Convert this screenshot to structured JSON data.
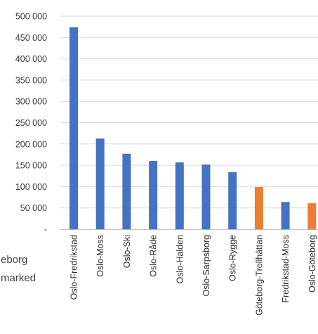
{
  "chart_data": {
    "type": "bar",
    "title": "",
    "xlabel": "",
    "ylabel": "",
    "ylim": [
      0,
      500000
    ],
    "y_ticks": [
      {
        "value": 0,
        "label": "-"
      },
      {
        "value": 50000,
        "label": "50 000"
      },
      {
        "value": 100000,
        "label": "100 000"
      },
      {
        "value": 150000,
        "label": "150 000"
      },
      {
        "value": 200000,
        "label": "200 000"
      },
      {
        "value": 250000,
        "label": "250 000"
      },
      {
        "value": 300000,
        "label": "300 000"
      },
      {
        "value": 350000,
        "label": "350 000"
      },
      {
        "value": 400000,
        "label": "400 000"
      },
      {
        "value": 450000,
        "label": "450 000"
      },
      {
        "value": 500000,
        "label": "500 000"
      }
    ],
    "grid": true,
    "legend": "none",
    "categories": [
      "Oslo-Fredrikstad",
      "Oslo-Moss",
      "Oslo-Ski",
      "Oslo-Råde",
      "Oslo-Halden",
      "Oslo-Sarpsborg",
      "Oslo-Rygge",
      "Göteborg-Trollhättan",
      "Fredrikstad-Moss",
      "Oslo-Göteborg"
    ],
    "values": [
      474000,
      213000,
      177000,
      160000,
      157000,
      152000,
      134000,
      99000,
      64000,
      61000
    ],
    "colors": [
      "#4472c4",
      "#4472c4",
      "#4472c4",
      "#4472c4",
      "#4472c4",
      "#4472c4",
      "#4472c4",
      "#ed7d31",
      "#4472c4",
      "#ed7d31"
    ],
    "series_colors": {
      "blue": "#4472c4",
      "orange": "#ed7d31"
    }
  },
  "side_text": [
    "eborg",
    "marked"
  ]
}
